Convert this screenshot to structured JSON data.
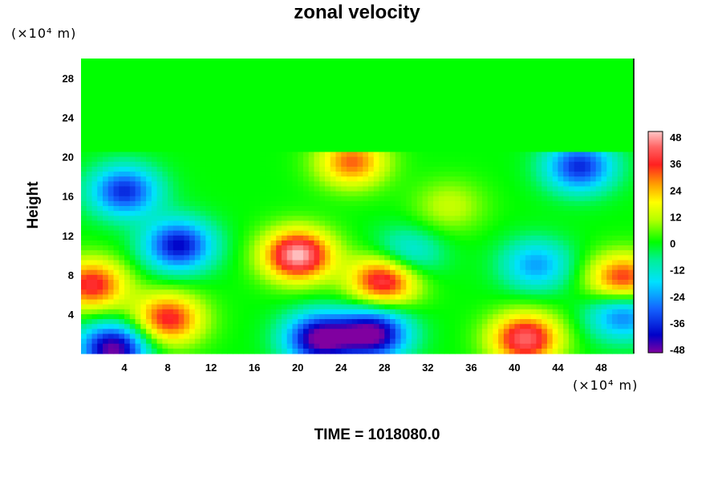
{
  "chart_data": {
    "type": "heatmap",
    "title": "zonal velocity",
    "ylabel": "Height",
    "xlabel": "",
    "x_unit": "(×10⁴ m)",
    "y_unit": "(×10⁴ m)",
    "footer": "TIME = 1018080.0",
    "xlim": [
      0,
      51
    ],
    "ylim": [
      0,
      30
    ],
    "x_ticks": [
      4,
      8,
      12,
      16,
      20,
      24,
      28,
      32,
      36,
      40,
      44,
      48
    ],
    "y_ticks": [
      4,
      8,
      12,
      16,
      20,
      24,
      28
    ],
    "colorbar": {
      "min": -48,
      "max": 48,
      "ticks": [
        48,
        36,
        24,
        12,
        0,
        -12,
        -24,
        -36,
        -48
      ]
    },
    "field_description": "Zonal velocity field; near 0 above height ~20; positive jet centered near x~20, y~10 (~48); negative cores near x~9, y~11 (~-40) and near surface x~20–26 (~-48); positive near surface x~40–44 (~40).",
    "features": [
      {
        "x": 20,
        "y": 10,
        "value": 48
      },
      {
        "x": 28,
        "y": 7.5,
        "value": 42
      },
      {
        "x": 25,
        "y": 19.5,
        "value": 30
      },
      {
        "x": 1,
        "y": 7,
        "value": 36
      },
      {
        "x": 50,
        "y": 7.5,
        "value": 36
      },
      {
        "x": 41,
        "y": 1.5,
        "value": 42
      },
      {
        "x": 8,
        "y": 3.5,
        "value": 36
      },
      {
        "x": 9,
        "y": 11,
        "value": -40
      },
      {
        "x": 22,
        "y": 1.5,
        "value": -48
      },
      {
        "x": 27,
        "y": 2,
        "value": -48
      },
      {
        "x": 3,
        "y": 0.5,
        "value": -48
      },
      {
        "x": 4,
        "y": 16.5,
        "value": -36
      },
      {
        "x": 46,
        "y": 19,
        "value": -36
      },
      {
        "x": 42,
        "y": 9,
        "value": -24
      },
      {
        "x": 50,
        "y": 4,
        "value": -30
      },
      {
        "x": 30,
        "y": 10,
        "value": -20
      },
      {
        "x": 34,
        "y": 15,
        "value": 12
      }
    ]
  }
}
